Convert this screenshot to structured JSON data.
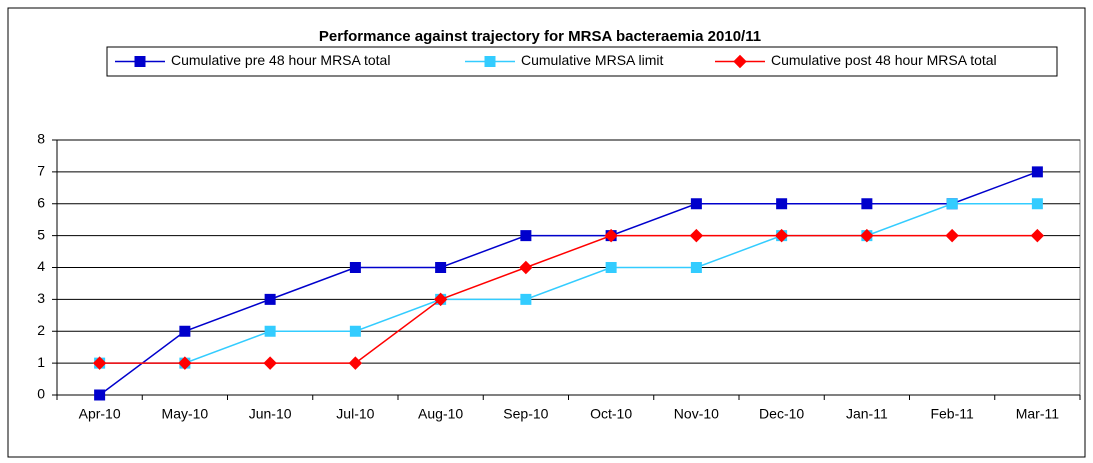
{
  "chart_data": {
    "type": "line",
    "title": "Performance against trajectory for MRSA bacteraemia 2010/11",
    "categories": [
      "Apr-10",
      "May-10",
      "Jun-10",
      "Jul-10",
      "Aug-10",
      "Sep-10",
      "Oct-10",
      "Nov-10",
      "Dec-10",
      "Jan-11",
      "Feb-11",
      "Mar-11"
    ],
    "series": [
      {
        "name": "Cumulative pre 48 hour MRSA total",
        "color": "#0000cc",
        "marker": "square",
        "values": [
          0,
          2,
          3,
          4,
          4,
          5,
          5,
          6,
          6,
          6,
          6,
          7
        ]
      },
      {
        "name": "Cumulative MRSA limit",
        "color": "#33ccff",
        "marker": "square",
        "values": [
          1,
          1,
          2,
          2,
          3,
          3,
          4,
          4,
          5,
          5,
          6,
          6
        ]
      },
      {
        "name": "Cumulative post 48 hour MRSA total",
        "color": "#ff0000",
        "marker": "diamond",
        "values": [
          1,
          1,
          1,
          1,
          3,
          4,
          5,
          5,
          5,
          5,
          5,
          5
        ]
      }
    ],
    "ylim": [
      0,
      8
    ],
    "yticks": [
      0,
      1,
      2,
      3,
      4,
      5,
      6,
      7,
      8
    ],
    "grid": true,
    "legend": "top"
  }
}
